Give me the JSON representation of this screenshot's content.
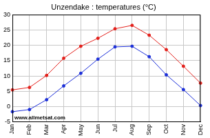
{
  "chart_data": {
    "type": "line",
    "title": "Unzendake : temperatures (°C)",
    "categories": [
      "Jan",
      "Feb",
      "Mar",
      "Apr",
      "May",
      "Jun",
      "Jul",
      "Aug",
      "Sep",
      "Oct",
      "Nov",
      "Dec"
    ],
    "series": [
      {
        "color": "#e3201b",
        "marker": "circle",
        "values": [
          5.5,
          6.3,
          10.2,
          15.8,
          19.7,
          22.3,
          25.4,
          26.5,
          23.3,
          18.6,
          13.2,
          7.7
        ]
      },
      {
        "color": "#1c2fd8",
        "marker": "circle",
        "values": [
          -1.6,
          -0.9,
          2.3,
          6.8,
          10.9,
          15.5,
          19.5,
          19.7,
          16.3,
          10.4,
          5.6,
          0.4
        ]
      }
    ],
    "ylim": [
      -5,
      30
    ],
    "yticks": [
      -5,
      0,
      5,
      10,
      15,
      20,
      25,
      30
    ],
    "grid": true,
    "annotations": [
      "www.allmetsat.com"
    ]
  }
}
